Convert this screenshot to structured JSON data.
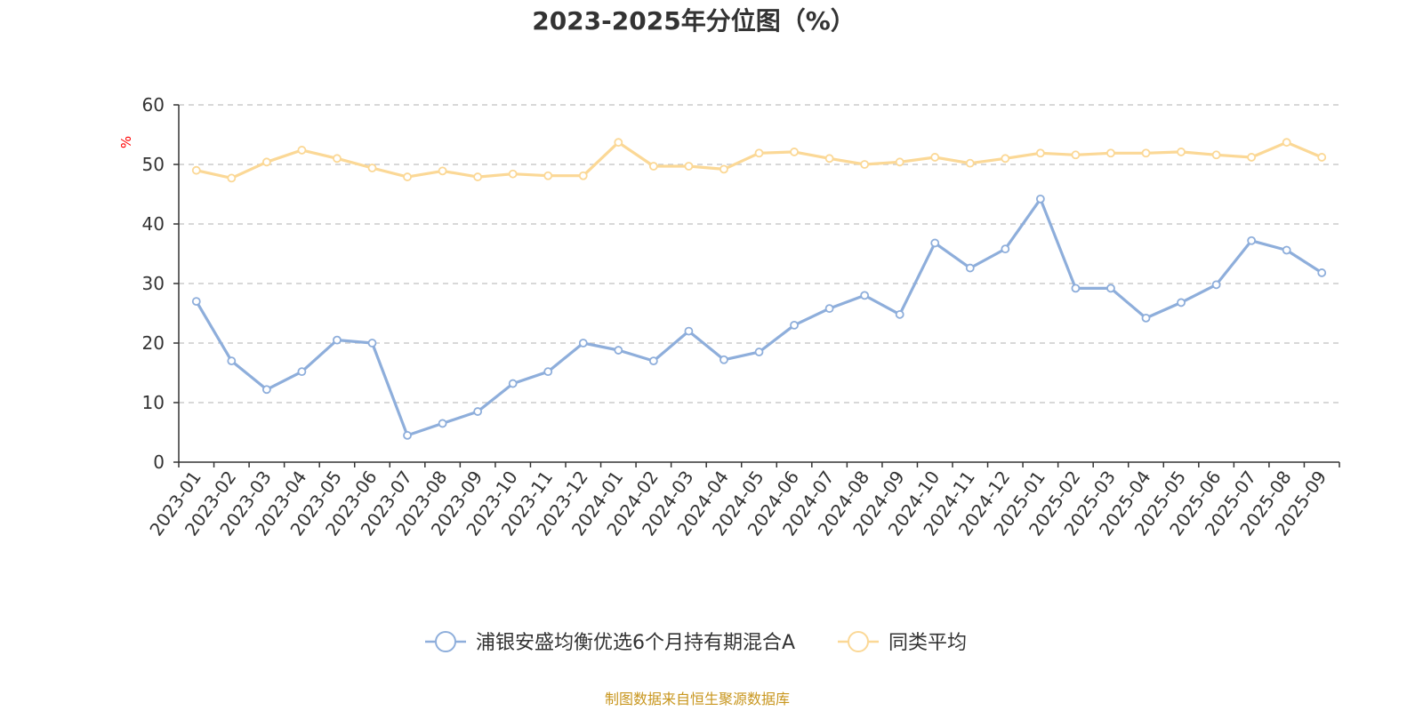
{
  "chart_data": {
    "type": "line",
    "title": "2023-2025年分位图（%）",
    "ylabel": "%",
    "ylim": [
      0,
      60
    ],
    "yticks": [
      "0",
      "10",
      "20",
      "30",
      "40",
      "50",
      "60"
    ],
    "grid": true,
    "legend_position": "bottom",
    "categories": [
      "2023-01",
      "2023-02",
      "2023-03",
      "2023-04",
      "2023-05",
      "2023-06",
      "2023-07",
      "2023-08",
      "2023-09",
      "2023-10",
      "2023-11",
      "2023-12",
      "2024-01",
      "2024-02",
      "2024-03",
      "2024-04",
      "2024-05",
      "2024-06",
      "2024-07",
      "2024-08",
      "2024-09",
      "2024-10",
      "2024-11",
      "2024-12",
      "2025-01",
      "2025-02",
      "2025-03",
      "2025-04",
      "2025-05",
      "2025-06",
      "2025-07",
      "2025-08",
      "2025-09"
    ],
    "series": [
      {
        "name": "浦银安盛均衡优选6个月持有期混合A",
        "color": "#8eaedb",
        "values": [
          27.0,
          17.0,
          12.2,
          15.2,
          20.5,
          20.0,
          4.5,
          6.5,
          8.5,
          13.2,
          15.2,
          20.0,
          18.8,
          17.0,
          22.0,
          17.2,
          18.5,
          23.0,
          25.8,
          28.0,
          24.8,
          36.8,
          32.6,
          35.8,
          44.2,
          29.2,
          29.2,
          24.2,
          26.8,
          29.8,
          37.2,
          35.6,
          31.8
        ]
      },
      {
        "name": "同类平均",
        "color": "#fbd896",
        "values": [
          49.0,
          47.7,
          50.4,
          52.4,
          51.0,
          49.4,
          47.9,
          48.9,
          47.9,
          48.4,
          48.1,
          48.1,
          53.7,
          49.7,
          49.7,
          49.2,
          51.9,
          52.1,
          51.0,
          50.0,
          50.4,
          51.2,
          50.2,
          51.0,
          51.9,
          51.6,
          51.9,
          51.9,
          52.1,
          51.6,
          51.2,
          53.7,
          51.2
        ]
      }
    ]
  },
  "footer": {
    "source": "制图数据来自恒生聚源数据库"
  }
}
